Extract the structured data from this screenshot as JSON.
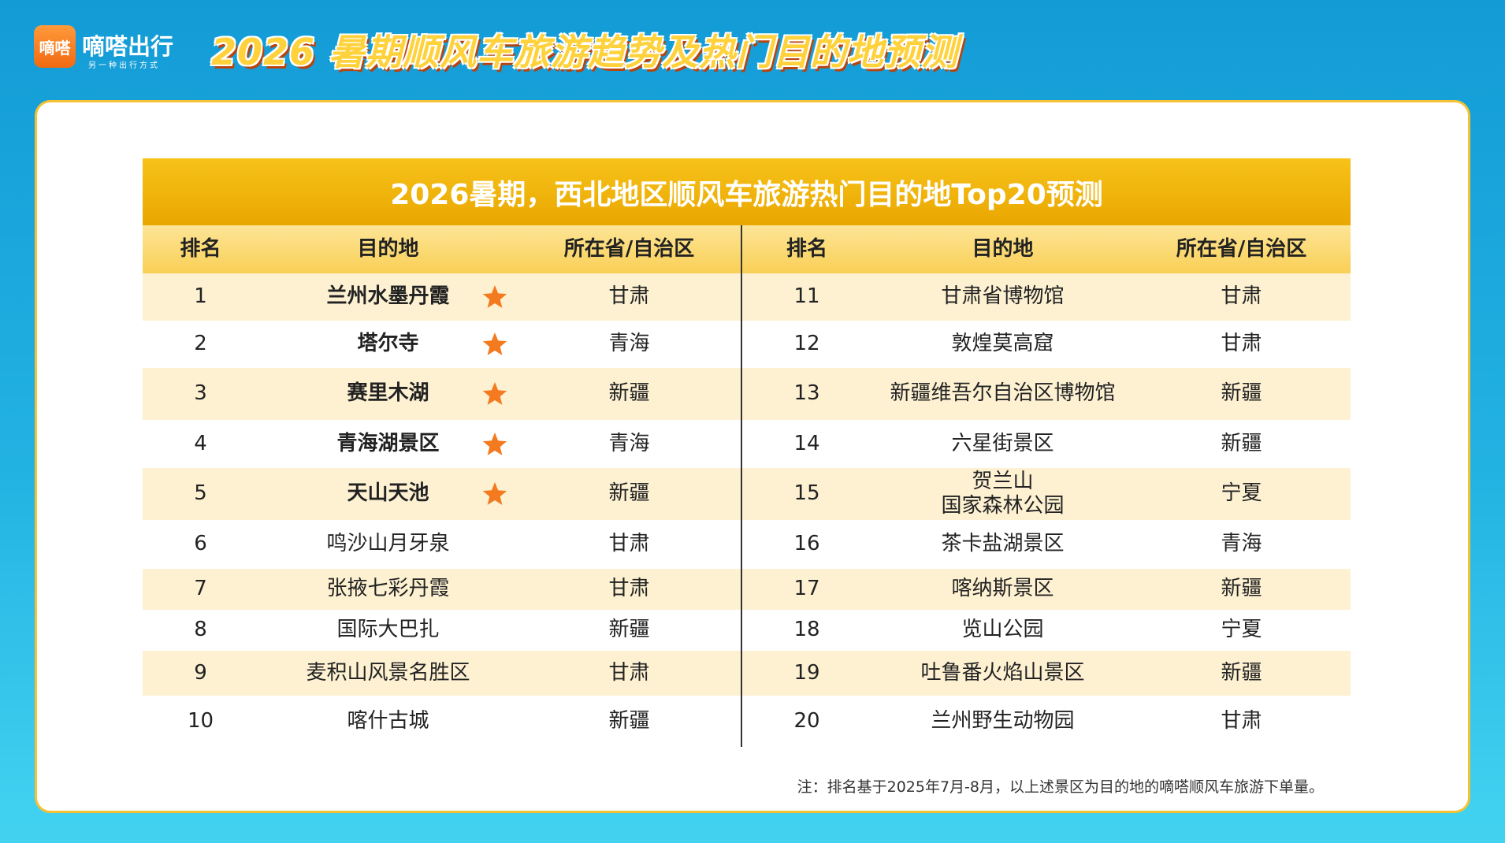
{
  "header": {
    "logo_text": "嘀嗒",
    "brand": "嘀嗒出行",
    "slogan": "另一种出行方式",
    "title": "2026 暑期顺风车旅游趋势及热门目的地预测"
  },
  "table": {
    "title": "2026暑期，西北地区顺风车旅游热门目的地Top20预测",
    "columns": [
      "排名",
      "目的地",
      "所在省/自治区"
    ],
    "rows": [
      {
        "rank": 1,
        "destination": "兰州水墨丹霞",
        "province": "甘肃",
        "starred": true
      },
      {
        "rank": 2,
        "destination": "塔尔寺",
        "province": "青海",
        "starred": true
      },
      {
        "rank": 3,
        "destination": "赛里木湖",
        "province": "新疆",
        "starred": true
      },
      {
        "rank": 4,
        "destination": "青海湖景区",
        "province": "青海",
        "starred": true
      },
      {
        "rank": 5,
        "destination": "天山天池",
        "province": "新疆",
        "starred": true
      },
      {
        "rank": 6,
        "destination": "鸣沙山月牙泉",
        "province": "甘肃",
        "starred": false
      },
      {
        "rank": 7,
        "destination": "张掖七彩丹霞",
        "province": "甘肃",
        "starred": false
      },
      {
        "rank": 8,
        "destination": "国际大巴扎",
        "province": "新疆",
        "starred": false
      },
      {
        "rank": 9,
        "destination": "麦积山风景名胜区",
        "province": "甘肃",
        "starred": false
      },
      {
        "rank": 10,
        "destination": "喀什古城",
        "province": "新疆",
        "starred": false
      },
      {
        "rank": 11,
        "destination": "甘肃省博物馆",
        "province": "甘肃",
        "starred": false
      },
      {
        "rank": 12,
        "destination": "敦煌莫高窟",
        "province": "甘肃",
        "starred": false
      },
      {
        "rank": 13,
        "destination": "新疆维吾尔自治区博物馆",
        "province": "新疆",
        "starred": false
      },
      {
        "rank": 14,
        "destination": "六星街景区",
        "province": "新疆",
        "starred": false
      },
      {
        "rank": 15,
        "destination": "贺兰山\n国家森林公园",
        "province": "宁夏",
        "starred": false
      },
      {
        "rank": 16,
        "destination": "茶卡盐湖景区",
        "province": "青海",
        "starred": false
      },
      {
        "rank": 17,
        "destination": "喀纳斯景区",
        "province": "新疆",
        "starred": false
      },
      {
        "rank": 18,
        "destination": "览山公园",
        "province": "宁夏",
        "starred": false
      },
      {
        "rank": 19,
        "destination": "吐鲁番火焰山景区",
        "province": "新疆",
        "starred": false
      },
      {
        "rank": 20,
        "destination": "兰州野生动物园",
        "province": "甘肃",
        "starred": false
      }
    ]
  },
  "footnote": "注：排名基于2025年7月-8月，以上述景区为目的地的嘀嗒顺风车旅游下单量。"
}
